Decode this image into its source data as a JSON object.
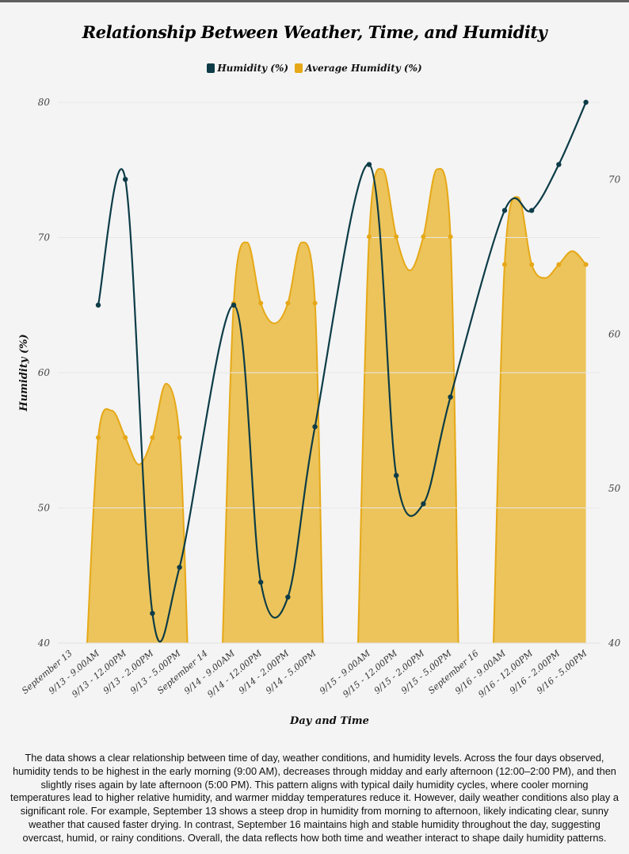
{
  "chart_data": {
    "type": "line",
    "title": "Relationship Between Weather, Time, and Humidity",
    "xlabel": "Day and Time",
    "ylabel": "Humidity (%)",
    "categories": [
      "September 13",
      "9/13 - 9.00AM",
      "9/13 - 12.00PM",
      "9/13 - 2.00PM",
      "9/13 - 5.00PM",
      "September 14",
      "9/14 - 9.00AM",
      "9/14 - 12.00PM",
      "9/14 - 2.00PM",
      "9/14 - 5.00PM",
      "",
      "9/15 - 9.00AM",
      "9/15 - 12.00PM",
      "9/15 - 2.00PM",
      "9/15 - 5.00PM",
      "September 16",
      "9/16 - 9.00AM",
      "9/16 - 12.00PM",
      "9/16 - 2.00PM",
      "9/16 - 5.00PM"
    ],
    "ylim_left": [
      40,
      80
    ],
    "ylim_right": [
      40,
      75
    ],
    "yticks_left": [
      40,
      50,
      60,
      70,
      80
    ],
    "yticks_right": [
      40,
      50,
      60,
      70
    ],
    "legend_position": "top",
    "series": [
      {
        "name": "Humidity (%)",
        "axis": "left",
        "color": "#0d3c47",
        "values": [
          null,
          65,
          74.3,
          42.2,
          45.6,
          null,
          65,
          44.5,
          43.4,
          56,
          null,
          75.4,
          52.4,
          50.3,
          58.2,
          null,
          72,
          72,
          75.4,
          80
        ]
      },
      {
        "name": "Average Humidity (%)",
        "axis": "right",
        "color": "#e6a817",
        "fill": "#ebc152",
        "values": [
          null,
          53.3,
          53.3,
          53.3,
          53.3,
          null,
          62,
          62,
          62,
          62,
          null,
          66.3,
          66.3,
          66.3,
          66.3,
          null,
          64.5,
          64.5,
          64.5,
          64.5
        ]
      }
    ]
  },
  "description": "The data shows a clear relationship between time of day, weather conditions, and humidity levels. Across the four days observed, humidity tends to be highest in the early morning (9:00 AM), decreases through midday and early afternoon (12:00–2:00 PM), and then slightly rises again by late afternoon (5:00 PM). This pattern aligns with typical daily humidity cycles, where cooler morning temperatures lead to higher relative humidity, and warmer midday temperatures reduce it. However, daily weather conditions also play a significant role. For example, September 13 shows a steep drop in humidity from morning to afternoon, likely indicating clear, sunny weather that caused faster drying. In contrast, September 16 maintains high and stable humidity throughout the day, suggesting overcast, humid, or rainy conditions. Overall, the data reflects how both time and weather interact to shape daily humidity patterns."
}
